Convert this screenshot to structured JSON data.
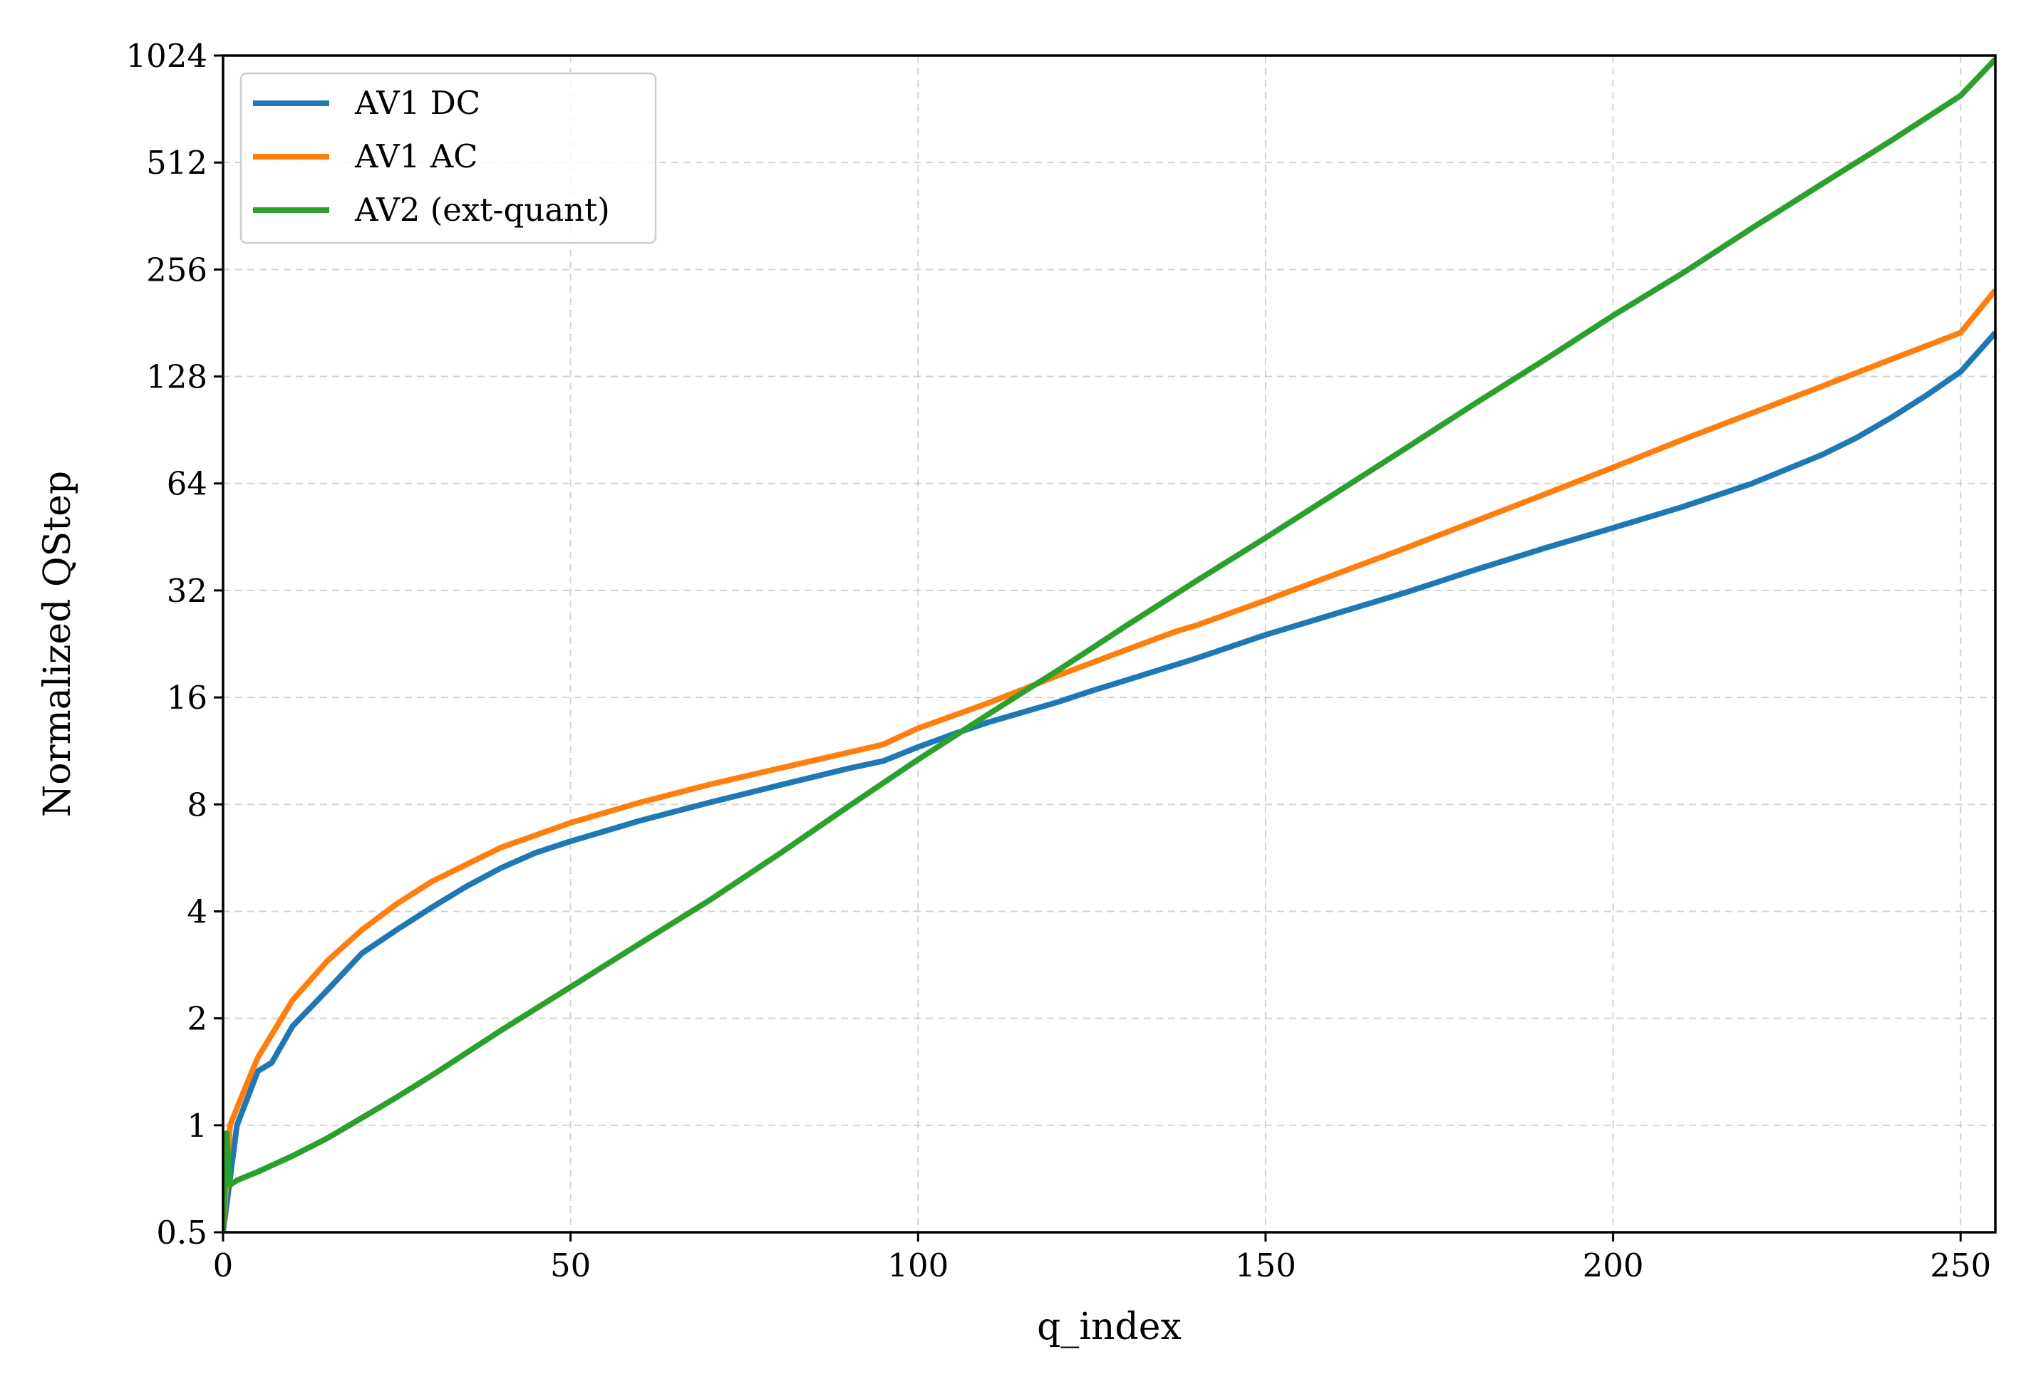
{
  "chart_data": {
    "type": "line",
    "title": "",
    "xlabel": "q_index",
    "ylabel": "Normalized QStep",
    "xlim": [
      0,
      255
    ],
    "ylim": [
      0.5,
      1024
    ],
    "yscale": "log2",
    "grid": true,
    "legend_position": "top-left",
    "x_ticks": [
      0,
      50,
      100,
      150,
      200,
      250
    ],
    "y_ticks": [
      0.5,
      1,
      2,
      4,
      8,
      16,
      32,
      64,
      128,
      256,
      512,
      1024
    ],
    "x_tick_labels": [
      "0",
      "50",
      "100",
      "150",
      "200",
      "250"
    ],
    "y_tick_labels": [
      "0.5",
      "1",
      "2",
      "4",
      "8",
      "16",
      "32",
      "64",
      "128",
      "256",
      "512",
      "1024"
    ],
    "series": [
      {
        "name": "AV1 DC",
        "color": "#1f77b4",
        "x": [
          0,
          2,
          5,
          7,
          10,
          15,
          20,
          25,
          30,
          35,
          40,
          45,
          50,
          60,
          70,
          80,
          90,
          95,
          100,
          105,
          110,
          120,
          125,
          130,
          140,
          150,
          160,
          170,
          180,
          190,
          200,
          210,
          220,
          230,
          235,
          240,
          245,
          250,
          255
        ],
        "values": [
          0.5,
          1.0,
          1.42,
          1.5,
          1.9,
          2.4,
          3.05,
          3.55,
          4.1,
          4.7,
          5.3,
          5.85,
          6.3,
          7.2,
          8.1,
          9.05,
          10.1,
          10.6,
          11.6,
          12.6,
          13.6,
          15.5,
          16.7,
          17.9,
          20.6,
          24.0,
          27.5,
          31.5,
          36.5,
          42.0,
          48.0,
          55.0,
          64.0,
          77.0,
          86.0,
          98.0,
          113.0,
          132.0,
          170.0
        ]
      },
      {
        "name": "AV1 AC",
        "color": "#ff7f0e",
        "x": [
          0,
          1,
          3,
          5,
          10,
          15,
          20,
          25,
          30,
          40,
          50,
          60,
          70,
          80,
          90,
          95,
          100,
          110,
          120,
          130,
          137,
          140,
          150,
          160,
          170,
          180,
          190,
          200,
          210,
          220,
          230,
          240,
          250,
          255
        ],
        "values": [
          0.5,
          1.0,
          1.25,
          1.55,
          2.25,
          2.9,
          3.55,
          4.2,
          4.85,
          6.05,
          7.1,
          8.1,
          9.1,
          10.1,
          11.2,
          11.8,
          13.1,
          15.4,
          18.4,
          21.8,
          24.5,
          25.5,
          30.0,
          35.5,
          42.0,
          50.0,
          59.5,
          71.0,
          85.0,
          101.0,
          120.0,
          143.0,
          170.0,
          224.0
        ]
      },
      {
        "name": "AV2 (ext-quant)",
        "color": "#2ca02c",
        "x": [
          0,
          0.5,
          1,
          2,
          5,
          10,
          15,
          20,
          25,
          30,
          40,
          50,
          60,
          70,
          80,
          90,
          100,
          110,
          115,
          120,
          125,
          130,
          140,
          150,
          160,
          170,
          180,
          190,
          200,
          210,
          220,
          230,
          240,
          250,
          255
        ],
        "values": [
          0.5,
          0.95,
          0.68,
          0.7,
          0.74,
          0.82,
          0.92,
          1.05,
          1.2,
          1.38,
          1.85,
          2.45,
          3.25,
          4.3,
          5.8,
          7.9,
          10.7,
          14.3,
          16.5,
          19.0,
          22.0,
          25.5,
          34.0,
          45.0,
          60.0,
          80.0,
          107.0,
          142.0,
          190.0,
          250.0,
          335.0,
          445.0,
          590.0,
          790.0,
          1000.0
        ]
      }
    ]
  }
}
